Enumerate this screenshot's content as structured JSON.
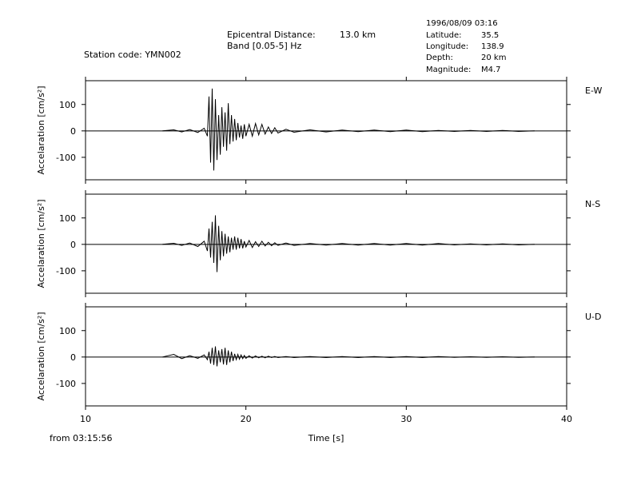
{
  "header": {
    "station": "Station code: YMN002",
    "distance_label": "Epicentral Distance:",
    "distance": "13.0 km",
    "band": "Band [0.05-5] Hz",
    "event": {
      "datetime": "1996/08/09 03:16",
      "rows": [
        [
          "Latitude:",
          "35.5"
        ],
        [
          "Longitude:",
          "138.9"
        ],
        [
          "Depth:",
          "20 km"
        ],
        [
          "Magnitude:",
          "M4.7"
        ]
      ]
    },
    "start": "from 03:15:56"
  },
  "chart_data": [
    {
      "type": "line",
      "label": "E-W",
      "ylabel": "Accelaration [cm/s²]",
      "xlim": [
        10,
        40
      ],
      "xticks": [
        10,
        20,
        30,
        40
      ],
      "ylim": [
        -185,
        190
      ],
      "yticks": [
        -100,
        0,
        100
      ],
      "x": [
        14.8,
        15.5,
        16.0,
        16.5,
        17.0,
        17.4,
        17.6,
        17.7,
        17.8,
        17.9,
        18.0,
        18.1,
        18.2,
        18.3,
        18.4,
        18.5,
        18.6,
        18.7,
        18.8,
        18.9,
        19.0,
        19.1,
        19.2,
        19.3,
        19.4,
        19.5,
        19.6,
        19.7,
        19.8,
        19.9,
        20.0,
        20.2,
        20.4,
        20.6,
        20.8,
        21.0,
        21.2,
        21.4,
        21.6,
        21.8,
        22.0,
        22.5,
        23,
        24,
        25,
        26,
        27,
        28,
        29,
        30,
        31,
        32,
        33,
        34,
        35,
        36,
        37,
        38
      ],
      "values": [
        0,
        4,
        -4,
        5,
        -6,
        10,
        -20,
        130,
        -120,
        160,
        -150,
        120,
        -110,
        60,
        -90,
        90,
        -60,
        70,
        -75,
        105,
        -50,
        60,
        -40,
        45,
        -35,
        30,
        -25,
        20,
        -30,
        25,
        -20,
        25,
        -20,
        28,
        -15,
        25,
        -12,
        15,
        -10,
        12,
        -8,
        6,
        -5,
        4,
        -4,
        3,
        -3,
        3,
        -3,
        3,
        -3,
        2,
        -2,
        2,
        -2,
        2,
        -2,
        0
      ]
    },
    {
      "type": "line",
      "label": "N-S",
      "ylabel": "Accelaration [cm/s²]",
      "xlim": [
        10,
        40
      ],
      "xticks": [
        10,
        20,
        30,
        40
      ],
      "ylim": [
        -185,
        190
      ],
      "yticks": [
        -100,
        0,
        100
      ],
      "x": [
        14.8,
        15.5,
        16.0,
        16.5,
        17.0,
        17.4,
        17.6,
        17.7,
        17.8,
        17.9,
        18.0,
        18.1,
        18.2,
        18.3,
        18.4,
        18.5,
        18.6,
        18.7,
        18.8,
        18.9,
        19.0,
        19.1,
        19.2,
        19.3,
        19.4,
        19.5,
        19.6,
        19.7,
        19.8,
        19.9,
        20.0,
        20.2,
        20.4,
        20.6,
        20.8,
        21.0,
        21.2,
        21.4,
        21.6,
        21.8,
        22.0,
        22.5,
        23,
        24,
        25,
        26,
        27,
        28,
        29,
        30,
        31,
        32,
        33,
        34,
        35,
        36,
        37,
        38
      ],
      "values": [
        0,
        4,
        -4,
        5,
        -8,
        12,
        -25,
        60,
        -50,
        85,
        -70,
        110,
        -105,
        70,
        -60,
        50,
        -45,
        40,
        -35,
        30,
        -30,
        25,
        -20,
        30,
        -20,
        25,
        -15,
        20,
        -15,
        12,
        -10,
        15,
        -12,
        10,
        -8,
        12,
        -6,
        8,
        -5,
        6,
        -4,
        5,
        -4,
        3,
        -3,
        3,
        -3,
        3,
        -3,
        3,
        -3,
        3,
        -2,
        2,
        -2,
        2,
        -2,
        0
      ]
    },
    {
      "type": "line",
      "label": "U-D",
      "ylabel": "Accelaration [cm/s²]",
      "xlabel": "Time [s]",
      "xlim": [
        10,
        40
      ],
      "xticks": [
        10,
        20,
        30,
        40
      ],
      "ylim": [
        -185,
        190
      ],
      "yticks": [
        -100,
        0,
        100
      ],
      "x": [
        14.8,
        15.5,
        16.0,
        16.5,
        17.0,
        17.4,
        17.6,
        17.7,
        17.8,
        17.9,
        18.0,
        18.1,
        18.2,
        18.3,
        18.4,
        18.5,
        18.6,
        18.7,
        18.8,
        18.9,
        19.0,
        19.1,
        19.2,
        19.3,
        19.4,
        19.5,
        19.6,
        19.7,
        19.8,
        19.9,
        20.0,
        20.2,
        20.4,
        20.6,
        20.8,
        21.0,
        21.2,
        21.4,
        21.6,
        21.8,
        22.0,
        22.5,
        23,
        24,
        25,
        26,
        27,
        28,
        29,
        30,
        31,
        32,
        33,
        34,
        35,
        36,
        37,
        38
      ],
      "values": [
        0,
        10,
        -6,
        5,
        -5,
        8,
        -10,
        20,
        -25,
        35,
        -30,
        40,
        -35,
        25,
        -20,
        30,
        -28,
        35,
        -30,
        25,
        -20,
        20,
        -15,
        12,
        -10,
        10,
        -8,
        8,
        -6,
        6,
        -5,
        5,
        -4,
        4,
        -3,
        3,
        -3,
        3,
        -2,
        2,
        -2,
        2,
        -2,
        2,
        -2,
        2,
        -2,
        2,
        -2,
        2,
        -2,
        2,
        -1,
        1,
        -1,
        1,
        -1,
        0
      ]
    }
  ]
}
